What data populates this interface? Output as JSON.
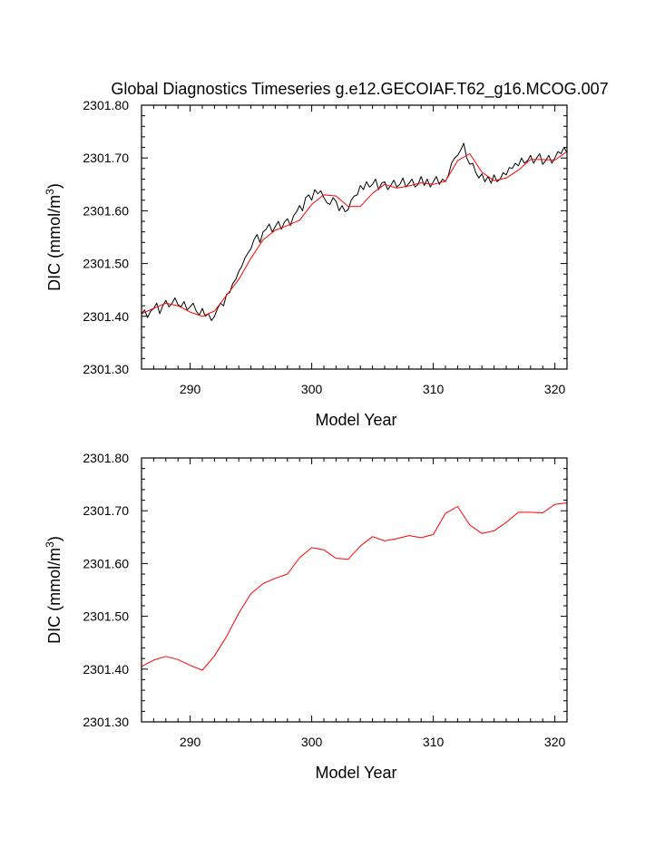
{
  "chart_data": [
    {
      "type": "line",
      "title": "Global Diagnostics Timeseries g.e12.GECOIAF.T62_g16.MCOG.007",
      "xlabel": "Model Year",
      "ylabel_main": "DIC (mmol/m",
      "ylabel_sup": "3",
      "ylabel_tail": ")",
      "xlim": [
        286,
        321
      ],
      "ylim": [
        2301.3,
        2301.8
      ],
      "xticks": [
        290,
        300,
        310,
        320
      ],
      "xtick_labels": [
        "290",
        "300",
        "310",
        "320"
      ],
      "yticks": [
        2301.3,
        2301.4,
        2301.5,
        2301.6,
        2301.7,
        2301.8
      ],
      "ytick_labels": [
        "2301.30",
        "2301.40",
        "2301.50",
        "2301.60",
        "2301.70",
        "2301.80"
      ],
      "series": [
        {
          "color": "#000000",
          "x": [
            286.0,
            286.25,
            286.5,
            286.75,
            287.0,
            287.25,
            287.5,
            287.75,
            288.0,
            288.25,
            288.5,
            288.75,
            289.0,
            289.25,
            289.5,
            289.75,
            290.0,
            290.25,
            290.5,
            290.75,
            291.0,
            291.25,
            291.5,
            291.75,
            292.0,
            292.25,
            292.5,
            292.75,
            293.0,
            293.25,
            293.5,
            293.75,
            294.0,
            294.25,
            294.5,
            294.75,
            295.0,
            295.25,
            295.5,
            295.75,
            296.0,
            296.25,
            296.5,
            296.75,
            297.0,
            297.25,
            297.5,
            297.75,
            298.0,
            298.25,
            298.5,
            298.75,
            299.0,
            299.25,
            299.5,
            299.75,
            300.0,
            300.25,
            300.5,
            300.75,
            301.0,
            301.25,
            301.5,
            301.75,
            302.0,
            302.25,
            302.5,
            302.75,
            303.0,
            303.25,
            303.5,
            303.75,
            304.0,
            304.25,
            304.5,
            304.75,
            305.0,
            305.25,
            305.5,
            305.75,
            306.0,
            306.25,
            306.5,
            306.75,
            307.0,
            307.25,
            307.5,
            307.75,
            308.0,
            308.25,
            308.5,
            308.75,
            309.0,
            309.25,
            309.5,
            309.75,
            310.0,
            310.25,
            310.5,
            310.75,
            311.0,
            311.25,
            311.5,
            311.75,
            312.0,
            312.25,
            312.5,
            312.75,
            313.0,
            313.25,
            313.5,
            313.75,
            314.0,
            314.25,
            314.5,
            314.75,
            315.0,
            315.25,
            315.5,
            315.75,
            316.0,
            316.25,
            316.5,
            316.75,
            317.0,
            317.25,
            317.5,
            317.75,
            318.0,
            318.25,
            318.5,
            318.75,
            319.0,
            319.25,
            319.5,
            319.75,
            320.0,
            320.25,
            320.5,
            320.75,
            321.0
          ],
          "values": [
            2301.405,
            2301.412,
            2301.398,
            2301.41,
            2301.415,
            2301.425,
            2301.405,
            2301.42,
            2301.43,
            2301.418,
            2301.424,
            2301.435,
            2301.422,
            2301.418,
            2301.428,
            2301.412,
            2301.418,
            2301.425,
            2301.41,
            2301.402,
            2301.415,
            2301.4,
            2301.405,
            2301.392,
            2301.4,
            2301.415,
            2301.425,
            2301.42,
            2301.442,
            2301.445,
            2301.462,
            2301.47,
            2301.485,
            2301.495,
            2301.51,
            2301.52,
            2301.528,
            2301.545,
            2301.555,
            2301.54,
            2301.56,
            2301.565,
            2301.575,
            2301.56,
            2301.57,
            2301.58,
            2301.565,
            2301.578,
            2301.585,
            2301.572,
            2301.59,
            2301.598,
            2301.61,
            2301.6,
            2301.625,
            2301.63,
            2301.62,
            2301.64,
            2301.632,
            2301.638,
            2301.625,
            2301.615,
            2301.612,
            2301.625,
            2301.618,
            2301.6,
            2301.61,
            2301.598,
            2301.602,
            2301.62,
            2301.628,
            2301.63,
            2301.648,
            2301.64,
            2301.655,
            2301.645,
            2301.65,
            2301.66,
            2301.64,
            2301.652,
            2301.655,
            2301.64,
            2301.648,
            2301.658,
            2301.645,
            2301.65,
            2301.662,
            2301.645,
            2301.652,
            2301.66,
            2301.645,
            2301.65,
            2301.665,
            2301.648,
            2301.66,
            2301.645,
            2301.655,
            2301.665,
            2301.65,
            2301.66,
            2301.655,
            2301.668,
            2301.69,
            2301.7,
            2301.705,
            2301.715,
            2301.728,
            2301.7,
            2301.688,
            2301.69,
            2301.672,
            2301.662,
            2301.67,
            2301.655,
            2301.665,
            2301.652,
            2301.668,
            2301.655,
            2301.66,
            2301.672,
            2301.668,
            2301.682,
            2301.68,
            2301.69,
            2301.685,
            2301.7,
            2301.69,
            2301.695,
            2301.705,
            2301.69,
            2301.7,
            2301.708,
            2301.688,
            2301.695,
            2301.705,
            2301.69,
            2301.7,
            2301.712,
            2301.708,
            2301.72,
            2301.71
          ]
        },
        {
          "color": "#ff0000",
          "x": [
            286.0,
            287.0,
            288.0,
            289.0,
            290.0,
            291.0,
            292.0,
            293.0,
            294.0,
            295.0,
            296.0,
            297.0,
            298.0,
            299.0,
            300.0,
            301.0,
            302.0,
            303.0,
            304.0,
            305.0,
            306.0,
            307.0,
            308.0,
            309.0,
            310.0,
            311.0,
            312.0,
            313.0,
            314.0,
            315.0,
            316.0,
            317.0,
            318.0,
            319.0,
            320.0,
            321.0
          ],
          "values": [
            2301.405,
            2301.415,
            2301.425,
            2301.42,
            2301.408,
            2301.4,
            2301.41,
            2301.44,
            2301.47,
            2301.51,
            2301.545,
            2301.563,
            2301.572,
            2301.582,
            2301.612,
            2301.63,
            2301.628,
            2301.608,
            2301.608,
            2301.633,
            2301.65,
            2301.643,
            2301.647,
            2301.653,
            2301.65,
            2301.656,
            2301.695,
            2301.708,
            2301.673,
            2301.657,
            2301.662,
            2301.677,
            2301.697,
            2301.697,
            2301.696,
            2301.712
          ]
        }
      ]
    },
    {
      "type": "line",
      "title": "",
      "xlabel": "Model Year",
      "ylabel_main": "DIC (mmol/m",
      "ylabel_sup": "3",
      "ylabel_tail": ")",
      "xlim": [
        286,
        321
      ],
      "ylim": [
        2301.3,
        2301.8
      ],
      "xticks": [
        290,
        300,
        310,
        320
      ],
      "xtick_labels": [
        "290",
        "300",
        "310",
        "320"
      ],
      "yticks": [
        2301.3,
        2301.4,
        2301.5,
        2301.6,
        2301.7,
        2301.8
      ],
      "ytick_labels": [
        "2301.30",
        "2301.40",
        "2301.50",
        "2301.60",
        "2301.70",
        "2301.80"
      ],
      "series": [
        {
          "color": "#ff0000",
          "x": [
            286.0,
            287.0,
            288.0,
            289.0,
            290.0,
            291.0,
            292.0,
            293.0,
            294.0,
            295.0,
            296.0,
            297.0,
            298.0,
            299.0,
            300.0,
            301.0,
            302.0,
            303.0,
            304.0,
            305.0,
            306.0,
            307.0,
            308.0,
            309.0,
            310.0,
            311.0,
            312.0,
            313.0,
            314.0,
            315.0,
            316.0,
            317.0,
            318.0,
            319.0,
            320.0,
            321.0
          ],
          "values": [
            2301.405,
            2301.417,
            2301.424,
            2301.418,
            2301.407,
            2301.398,
            2301.425,
            2301.462,
            2301.506,
            2301.543,
            2301.562,
            2301.572,
            2301.58,
            2301.611,
            2301.63,
            2301.626,
            2301.61,
            2301.608,
            2301.633,
            2301.651,
            2301.643,
            2301.647,
            2301.653,
            2301.649,
            2301.655,
            2301.695,
            2301.708,
            2301.673,
            2301.657,
            2301.662,
            2301.678,
            2301.697,
            2301.697,
            2301.696,
            2301.712,
            2301.715
          ]
        }
      ]
    }
  ]
}
